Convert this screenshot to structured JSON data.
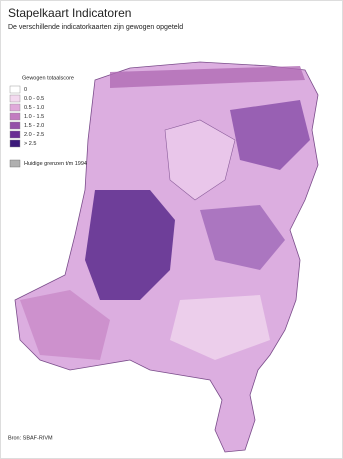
{
  "header": {
    "title": "Stapelkaart Indicatoren",
    "subtitle": "De verschillende indicatorkaarten zijn gewogen opgeteld"
  },
  "legend": {
    "title": "Gewogen totaalscore",
    "items": [
      {
        "label": "0",
        "color": "#ffffff"
      },
      {
        "label": "0.0 - 0.5",
        "color": "#f3d9ef"
      },
      {
        "label": "0.5 - 1.0",
        "color": "#e0a9da"
      },
      {
        "label": "1.0 - 1.5",
        "color": "#c27cc0"
      },
      {
        "label": "1.5 - 2.0",
        "color": "#9450a8"
      },
      {
        "label": "2.0 - 2.5",
        "color": "#6a2e94"
      },
      {
        "label": "> 2.5",
        "color": "#3c1a7a"
      }
    ]
  },
  "boundary_legend": {
    "label": "Huidige grenzen t/m 1994",
    "color": "#b0b0b0"
  },
  "source": "Bron: SBAF-RIVM"
}
